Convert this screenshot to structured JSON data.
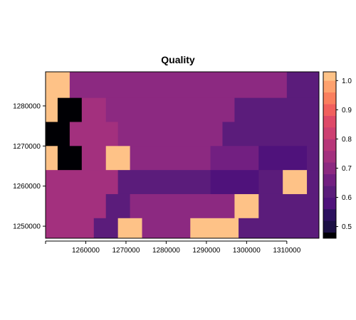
{
  "chart_data": {
    "type": "heatmap",
    "title": "Quality",
    "x_range": [
      1250000,
      1318000
    ],
    "y_range": [
      1247000,
      1288500
    ],
    "x_ticks": [
      1260000,
      1270000,
      1280000,
      1290000,
      1300000,
      1310000
    ],
    "x_tick_labels": [
      "1260000",
      "1270000",
      "1280000",
      "1290000",
      "1300000",
      "1310000"
    ],
    "y_ticks": [
      1250000,
      1260000,
      1270000,
      1280000
    ],
    "y_tick_labels": [
      "1250000",
      "1260000",
      "1270000",
      "1280000"
    ],
    "colorbar": {
      "range": [
        0.46,
        1.03
      ],
      "ticks": [
        0.5,
        0.6,
        0.7,
        0.8,
        0.9,
        1.0
      ],
      "tick_labels": [
        "0.5",
        "0.6",
        "0.7",
        "0.8",
        "0.9",
        "1.0"
      ],
      "breaks": [
        0.46,
        0.48,
        0.52,
        0.56,
        0.6,
        0.64,
        0.68,
        0.72,
        0.76,
        0.8,
        0.84,
        0.88,
        0.92,
        0.96,
        1.0,
        1.03
      ],
      "colors": [
        "#000004",
        "#1c1044",
        "#2c115f",
        "#4f127b",
        "#5b1c7b",
        "#721f81",
        "#8c2981",
        "#a3307e",
        "#b73779",
        "#cd4071",
        "#de4968",
        "#f1605d",
        "#fa7f5e",
        "#fea16e",
        "#fec287",
        "#fcfdbf"
      ]
    },
    "regions": [
      {
        "x": [
          1250000,
          1256000
        ],
        "y": [
          1282000,
          1288500
        ],
        "value": 1.0
      },
      {
        "x": [
          1256000,
          1310000
        ],
        "y": [
          1282000,
          1288500
        ],
        "value": 0.7
      },
      {
        "x": [
          1310000,
          1318000
        ],
        "y": [
          1282000,
          1288500
        ],
        "value": 0.62
      },
      {
        "x": [
          1250000,
          1253000
        ],
        "y": [
          1276000,
          1282000
        ],
        "value": 1.0
      },
      {
        "x": [
          1253000,
          1259000
        ],
        "y": [
          1276000,
          1282000
        ],
        "value": 0.46
      },
      {
        "x": [
          1259000,
          1265000
        ],
        "y": [
          1276000,
          1282000
        ],
        "value": 0.74
      },
      {
        "x": [
          1265000,
          1297000
        ],
        "y": [
          1276000,
          1282000
        ],
        "value": 0.7
      },
      {
        "x": [
          1297000,
          1318000
        ],
        "y": [
          1276000,
          1282000
        ],
        "value": 0.62
      },
      {
        "x": [
          1250000,
          1256000
        ],
        "y": [
          1270000,
          1276000
        ],
        "value": 0.46
      },
      {
        "x": [
          1256000,
          1268000
        ],
        "y": [
          1270000,
          1276000
        ],
        "value": 0.74
      },
      {
        "x": [
          1268000,
          1294000
        ],
        "y": [
          1270000,
          1276000
        ],
        "value": 0.7
      },
      {
        "x": [
          1294000,
          1318000
        ],
        "y": [
          1270000,
          1276000
        ],
        "value": 0.62
      },
      {
        "x": [
          1250000,
          1253000
        ],
        "y": [
          1264000,
          1270000
        ],
        "value": 1.0
      },
      {
        "x": [
          1253000,
          1259000
        ],
        "y": [
          1264000,
          1270000
        ],
        "value": 0.46
      },
      {
        "x": [
          1259000,
          1265000
        ],
        "y": [
          1264000,
          1270000
        ],
        "value": 0.74
      },
      {
        "x": [
          1265000,
          1271000
        ],
        "y": [
          1264000,
          1270000
        ],
        "value": 1.0
      },
      {
        "x": [
          1271000,
          1291000
        ],
        "y": [
          1264000,
          1270000
        ],
        "value": 0.7
      },
      {
        "x": [
          1291000,
          1303000
        ],
        "y": [
          1264000,
          1270000
        ],
        "value": 0.64
      },
      {
        "x": [
          1303000,
          1315000
        ],
        "y": [
          1264000,
          1270000
        ],
        "value": 0.56
      },
      {
        "x": [
          1315000,
          1318000
        ],
        "y": [
          1264000,
          1270000
        ],
        "value": 0.62
      },
      {
        "x": [
          1250000,
          1268000
        ],
        "y": [
          1258000,
          1264000
        ],
        "value": 0.74
      },
      {
        "x": [
          1268000,
          1291000
        ],
        "y": [
          1258000,
          1264000
        ],
        "value": 0.62
      },
      {
        "x": [
          1291000,
          1303000
        ],
        "y": [
          1258000,
          1264000
        ],
        "value": 0.56
      },
      {
        "x": [
          1303000,
          1309000
        ],
        "y": [
          1258000,
          1264000
        ],
        "value": 0.62
      },
      {
        "x": [
          1309000,
          1315000
        ],
        "y": [
          1258000,
          1264000
        ],
        "value": 1.0
      },
      {
        "x": [
          1315000,
          1318000
        ],
        "y": [
          1258000,
          1264000
        ],
        "value": 0.62
      },
      {
        "x": [
          1250000,
          1265000
        ],
        "y": [
          1252000,
          1258000
        ],
        "value": 0.74
      },
      {
        "x": [
          1265000,
          1271000
        ],
        "y": [
          1252000,
          1258000
        ],
        "value": 0.62
      },
      {
        "x": [
          1271000,
          1297000
        ],
        "y": [
          1252000,
          1258000
        ],
        "value": 0.7
      },
      {
        "x": [
          1297000,
          1303000
        ],
        "y": [
          1252000,
          1258000
        ],
        "value": 1.0
      },
      {
        "x": [
          1303000,
          1318000
        ],
        "y": [
          1252000,
          1258000
        ],
        "value": 0.62
      },
      {
        "x": [
          1250000,
          1262000
        ],
        "y": [
          1247000,
          1252000
        ],
        "value": 0.74
      },
      {
        "x": [
          1262000,
          1268000
        ],
        "y": [
          1247000,
          1252000
        ],
        "value": 0.62
      },
      {
        "x": [
          1268000,
          1274000
        ],
        "y": [
          1247000,
          1252000
        ],
        "value": 1.0
      },
      {
        "x": [
          1274000,
          1286000
        ],
        "y": [
          1247000,
          1252000
        ],
        "value": 0.7
      },
      {
        "x": [
          1286000,
          1298000
        ],
        "y": [
          1247000,
          1252000
        ],
        "value": 1.0
      },
      {
        "x": [
          1298000,
          1318000
        ],
        "y": [
          1247000,
          1252000
        ],
        "value": 0.62
      }
    ]
  }
}
